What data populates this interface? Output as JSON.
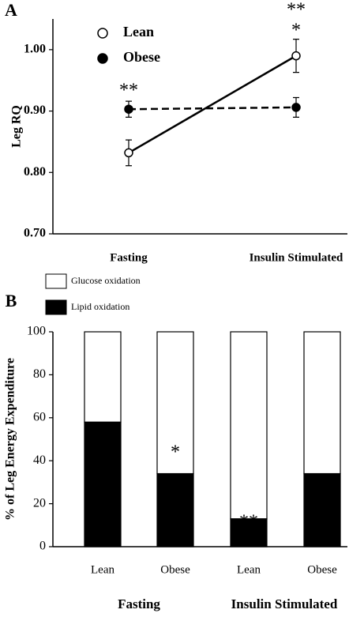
{
  "chart_data": [
    {
      "type": "line",
      "panel": "A",
      "categories": [
        "Fasting",
        "Insulin Stimulated"
      ],
      "ylabel": "Leg RQ",
      "ylim": [
        0.7,
        1.05
      ],
      "yticks": [
        {
          "value": 0.7,
          "label": "0.70"
        },
        {
          "value": 0.8,
          "label": "0.80"
        },
        {
          "value": 0.9,
          "label": "0.90"
        },
        {
          "value": 1.0,
          "label": "1.00"
        }
      ],
      "series": [
        {
          "name": "Lean",
          "color": "#000000",
          "marker": "open",
          "line_style": "solid",
          "values": [
            0.832,
            0.99
          ],
          "errors": [
            0.021,
            0.027
          ]
        },
        {
          "name": "Obese",
          "color": "#000000",
          "marker": "filled",
          "line_style": "dashed",
          "values": [
            0.903,
            0.906
          ],
          "errors": [
            0.013,
            0.016
          ]
        }
      ],
      "annotations": [
        "**",
        "**",
        "*"
      ]
    },
    {
      "type": "bar",
      "stacked": true,
      "panel": "B",
      "categories": [
        "Lean",
        "Obese",
        "Lean",
        "Obese"
      ],
      "groups": [
        "Fasting",
        "Insulin Stimulated"
      ],
      "ylabel": "% of Leg Energy Expenditure",
      "ylim": [
        0,
        100
      ],
      "yticks": [
        0,
        20,
        40,
        60,
        80,
        100
      ],
      "series": [
        {
          "name": "Lipid oxidation",
          "color": "#000000",
          "values": [
            58,
            34,
            13,
            34
          ]
        },
        {
          "name": "Glucose oxidation",
          "color": "#ffffff",
          "values": [
            42,
            66,
            87,
            66
          ]
        }
      ],
      "annotations": [
        "*",
        "**"
      ]
    }
  ]
}
